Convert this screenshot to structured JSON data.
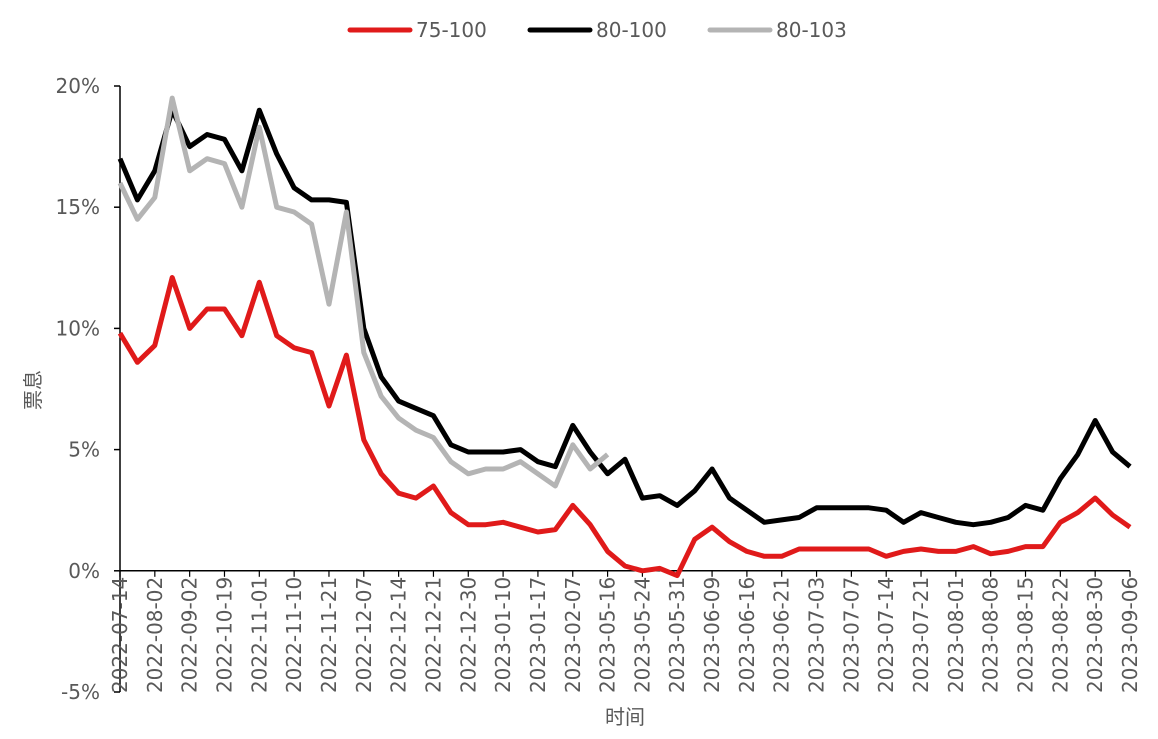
{
  "chart_data": {
    "type": "line",
    "y_label": "票息",
    "x_label": "时间",
    "categories": [
      "2022-07-14",
      null,
      "2022-08-02",
      null,
      "2022-09-02",
      null,
      "2022-10-19",
      null,
      "2022-11-01",
      null,
      "2022-11-10",
      null,
      "2022-11-21",
      null,
      "2022-12-07",
      null,
      "2022-12-14",
      null,
      "2022-12-21",
      null,
      "2022-12-30",
      null,
      "2023-01-10",
      null,
      "2023-01-17",
      null,
      "2023-02-07",
      null,
      "2023-05-16",
      null,
      "2023-05-24",
      null,
      "2023-05-31",
      null,
      "2023-06-09",
      null,
      "2023-06-16",
      null,
      "2023-06-21",
      null,
      "2023-07-03",
      null,
      "2023-07-07",
      null,
      "2023-07-14",
      null,
      "2023-07-21",
      null,
      "2023-08-01",
      null,
      "2023-08-08",
      null,
      "2023-08-15",
      null,
      "2023-08-22",
      null,
      "2023-08-30",
      null,
      "2023-09-06"
    ],
    "series": [
      {
        "name": "75-100",
        "color": "#e01a1a",
        "values": [
          9.8,
          8.6,
          9.3,
          12.1,
          10.0,
          10.8,
          10.8,
          9.7,
          11.9,
          9.7,
          9.2,
          9.0,
          6.8,
          8.9,
          5.4,
          4.0,
          3.2,
          3.0,
          3.5,
          2.4,
          1.9,
          1.9,
          2.0,
          1.8,
          1.6,
          1.7,
          2.7,
          1.9,
          0.8,
          0.2,
          0.0,
          0.1,
          -0.2,
          1.3,
          1.8,
          1.2,
          0.8,
          0.6,
          0.6,
          0.9,
          0.9,
          0.9,
          0.9,
          0.9,
          0.6,
          0.8,
          0.9,
          0.8,
          0.8,
          1.0,
          0.7,
          0.8,
          1.0,
          1.0,
          2.0,
          2.4,
          3.0,
          2.3,
          1.8
        ]
      },
      {
        "name": "80-100",
        "color": "#000000",
        "values": [
          17.0,
          15.3,
          16.5,
          19.0,
          17.5,
          18.0,
          17.8,
          16.5,
          19.0,
          17.2,
          15.8,
          15.3,
          15.3,
          15.2,
          10.0,
          8.0,
          7.0,
          6.7,
          6.4,
          5.2,
          4.9,
          4.9,
          4.9,
          5.0,
          4.5,
          4.3,
          6.0,
          4.9,
          4.0,
          4.6,
          3.0,
          3.1,
          2.7,
          3.3,
          4.2,
          3.0,
          2.5,
          2.0,
          2.1,
          2.2,
          2.6,
          2.6,
          2.6,
          2.6,
          2.5,
          2.0,
          2.4,
          2.2,
          2.0,
          1.9,
          2.0,
          2.2,
          2.7,
          2.5,
          3.8,
          4.8,
          6.2,
          4.9,
          4.3
        ]
      },
      {
        "name": "80-103",
        "color": "#b4b4b4",
        "values": [
          16.0,
          14.5,
          15.4,
          19.5,
          16.5,
          17.0,
          16.8,
          15.0,
          18.3,
          15.0,
          14.8,
          14.3,
          11.0,
          14.8,
          9.0,
          7.2,
          6.3,
          5.8,
          5.5,
          4.5,
          4.0,
          4.2,
          4.2,
          4.5,
          4.0,
          3.5,
          5.2,
          4.2,
          4.8,
          null,
          null,
          null,
          null,
          null,
          null,
          null,
          null,
          null,
          null,
          null,
          null,
          null,
          null,
          null,
          null,
          null,
          null,
          null,
          null,
          null,
          null,
          null,
          null,
          null,
          null,
          null,
          null,
          null,
          null
        ]
      }
    ],
    "ylim": [
      -5,
      20
    ],
    "yticks": [
      {
        "value": -5,
        "label": "-5%"
      },
      {
        "value": 0,
        "label": "0%"
      },
      {
        "value": 5,
        "label": "5%"
      },
      {
        "value": 10,
        "label": "10%"
      },
      {
        "value": 15,
        "label": "15%"
      },
      {
        "value": 20,
        "label": "20%"
      }
    ],
    "grid": false,
    "legend": "top"
  }
}
